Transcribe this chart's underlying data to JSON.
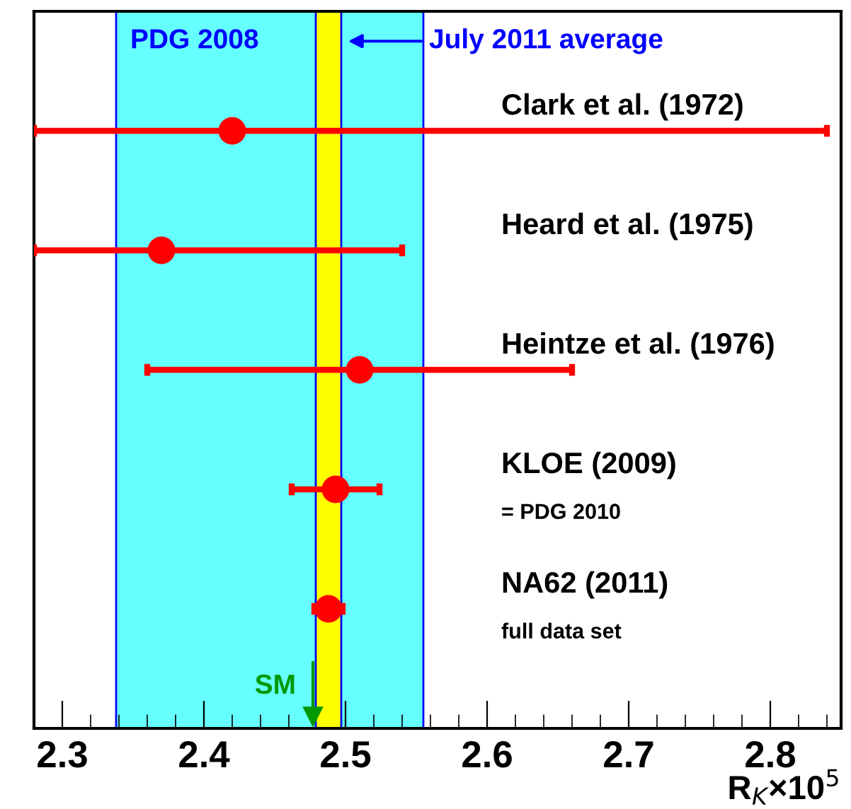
{
  "chart_data": {
    "type": "scatter",
    "orientation": "horizontal",
    "xlabel": "R$_{K}$×10$^{5}$",
    "categories": [
      "Clark et al. (1972)",
      "Heard et al. (1975)",
      "Heintze et al. (1976)",
      "KLOE (2009)",
      "NA62 (2011)"
    ],
    "values": [
      2.42,
      2.37,
      2.51,
      2.493,
      2.488
    ],
    "errors": [
      [
        2.28,
        2.84
      ],
      [
        2.28,
        2.54
      ],
      0.15,
      0.031,
      0.01
    ],
    "color": "#ff0000",
    "marker": "circle",
    "xlim": [
      2.28,
      2.85
    ],
    "xticks": [
      2.3,
      2.4,
      2.5,
      2.6,
      2.7,
      2.8
    ],
    "tick_labels": "x",
    "grid": false,
    "bands": [
      {
        "axis": "x",
        "from": 2.338,
        "to": 2.555,
        "label": "PDG 2008",
        "color": "#66ffff"
      },
      {
        "axis": "x",
        "from": 2.479,
        "to": 2.497,
        "label": "July 2011 average",
        "color": "#ffff00"
      }
    ],
    "ref_lines": [
      {
        "axis": "x",
        "value": 2.477,
        "label": "SM",
        "color": "#009900"
      }
    ],
    "annotations": [
      "= PDG 2010",
      "full data set"
    ]
  }
}
